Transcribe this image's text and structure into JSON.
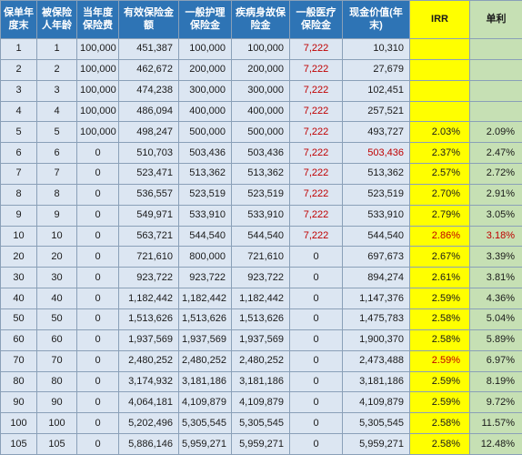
{
  "columns": [
    "保单年度末",
    "被保险人年龄",
    "当年度保险费",
    "有效保险金额",
    "一般护理保险金",
    "疾病身故保险金",
    "一般医疗保险金",
    "现金价值(年末)",
    "IRR",
    "单利"
  ],
  "colors": {
    "header_blue": "#2e74b5",
    "body_blue": "#dce6f2",
    "irr_yellow": "#ffff00",
    "simple_green": "#c6e0b4",
    "highlight_red": "#c00000"
  },
  "rows": [
    {
      "year": "1",
      "age": "1",
      "premium": "100,000",
      "sum_insured": "451,387",
      "nursing": "100,000",
      "death": "100,000",
      "medical": "7,222",
      "cash_value": "10,310",
      "irr": "",
      "simple": ""
    },
    {
      "year": "2",
      "age": "2",
      "premium": "100,000",
      "sum_insured": "462,672",
      "nursing": "200,000",
      "death": "200,000",
      "medical": "7,222",
      "cash_value": "27,679",
      "irr": "",
      "simple": ""
    },
    {
      "year": "3",
      "age": "3",
      "premium": "100,000",
      "sum_insured": "474,238",
      "nursing": "300,000",
      "death": "300,000",
      "medical": "7,222",
      "cash_value": "102,451",
      "irr": "",
      "simple": ""
    },
    {
      "year": "4",
      "age": "4",
      "premium": "100,000",
      "sum_insured": "486,094",
      "nursing": "400,000",
      "death": "400,000",
      "medical": "7,222",
      "cash_value": "257,521",
      "irr": "",
      "simple": ""
    },
    {
      "year": "5",
      "age": "5",
      "premium": "100,000",
      "sum_insured": "498,247",
      "nursing": "500,000",
      "death": "500,000",
      "medical": "7,222",
      "cash_value": "493,727",
      "irr": "2.03%",
      "simple": "2.09%"
    },
    {
      "year": "6",
      "age": "6",
      "premium": "0",
      "sum_insured": "510,703",
      "nursing": "503,436",
      "death": "503,436",
      "medical": "7,222",
      "cash_value": "503,436",
      "irr": "2.37%",
      "simple": "2.47%",
      "cash_red": true
    },
    {
      "year": "7",
      "age": "7",
      "premium": "0",
      "sum_insured": "523,471",
      "nursing": "513,362",
      "death": "513,362",
      "medical": "7,222",
      "cash_value": "513,362",
      "irr": "2.57%",
      "simple": "2.72%"
    },
    {
      "year": "8",
      "age": "8",
      "premium": "0",
      "sum_insured": "536,557",
      "nursing": "523,519",
      "death": "523,519",
      "medical": "7,222",
      "cash_value": "523,519",
      "irr": "2.70%",
      "simple": "2.91%"
    },
    {
      "year": "9",
      "age": "9",
      "premium": "0",
      "sum_insured": "549,971",
      "nursing": "533,910",
      "death": "533,910",
      "medical": "7,222",
      "cash_value": "533,910",
      "irr": "2.79%",
      "simple": "3.05%"
    },
    {
      "year": "10",
      "age": "10",
      "premium": "0",
      "sum_insured": "563,721",
      "nursing": "544,540",
      "death": "544,540",
      "medical": "7,222",
      "cash_value": "544,540",
      "irr": "2.86%",
      "simple": "3.18%",
      "irr_red": true,
      "simple_red": true
    },
    {
      "year": "20",
      "age": "20",
      "premium": "0",
      "sum_insured": "721,610",
      "nursing": "800,000",
      "death": "721,610",
      "medical": "0",
      "cash_value": "697,673",
      "irr": "2.67%",
      "simple": "3.39%"
    },
    {
      "year": "30",
      "age": "30",
      "premium": "0",
      "sum_insured": "923,722",
      "nursing": "923,722",
      "death": "923,722",
      "medical": "0",
      "cash_value": "894,274",
      "irr": "2.61%",
      "simple": "3.81%"
    },
    {
      "year": "40",
      "age": "40",
      "premium": "0",
      "sum_insured": "1,182,442",
      "nursing": "1,182,442",
      "death": "1,182,442",
      "medical": "0",
      "cash_value": "1,147,376",
      "irr": "2.59%",
      "simple": "4.36%"
    },
    {
      "year": "50",
      "age": "50",
      "premium": "0",
      "sum_insured": "1,513,626",
      "nursing": "1,513,626",
      "death": "1,513,626",
      "medical": "0",
      "cash_value": "1,475,783",
      "irr": "2.58%",
      "simple": "5.04%"
    },
    {
      "year": "60",
      "age": "60",
      "premium": "0",
      "sum_insured": "1,937,569",
      "nursing": "1,937,569",
      "death": "1,937,569",
      "medical": "0",
      "cash_value": "1,900,370",
      "irr": "2.58%",
      "simple": "5.89%"
    },
    {
      "year": "70",
      "age": "70",
      "premium": "0",
      "sum_insured": "2,480,252",
      "nursing": "2,480,252",
      "death": "2,480,252",
      "medical": "0",
      "cash_value": "2,473,488",
      "irr": "2.59%",
      "simple": "6.97%",
      "irr_red": true
    },
    {
      "year": "80",
      "age": "80",
      "premium": "0",
      "sum_insured": "3,174,932",
      "nursing": "3,181,186",
      "death": "3,181,186",
      "medical": "0",
      "cash_value": "3,181,186",
      "irr": "2.59%",
      "simple": "8.19%"
    },
    {
      "year": "90",
      "age": "90",
      "premium": "0",
      "sum_insured": "4,064,181",
      "nursing": "4,109,879",
      "death": "4,109,879",
      "medical": "0",
      "cash_value": "4,109,879",
      "irr": "2.59%",
      "simple": "9.72%"
    },
    {
      "year": "100",
      "age": "100",
      "premium": "0",
      "sum_insured": "5,202,496",
      "nursing": "5,305,545",
      "death": "5,305,545",
      "medical": "0",
      "cash_value": "5,305,545",
      "irr": "2.58%",
      "simple": "11.57%"
    },
    {
      "year": "105",
      "age": "105",
      "premium": "0",
      "sum_insured": "5,886,146",
      "nursing": "5,959,271",
      "death": "5,959,271",
      "medical": "0",
      "cash_value": "5,959,271",
      "irr": "2.58%",
      "simple": "12.48%"
    }
  ]
}
